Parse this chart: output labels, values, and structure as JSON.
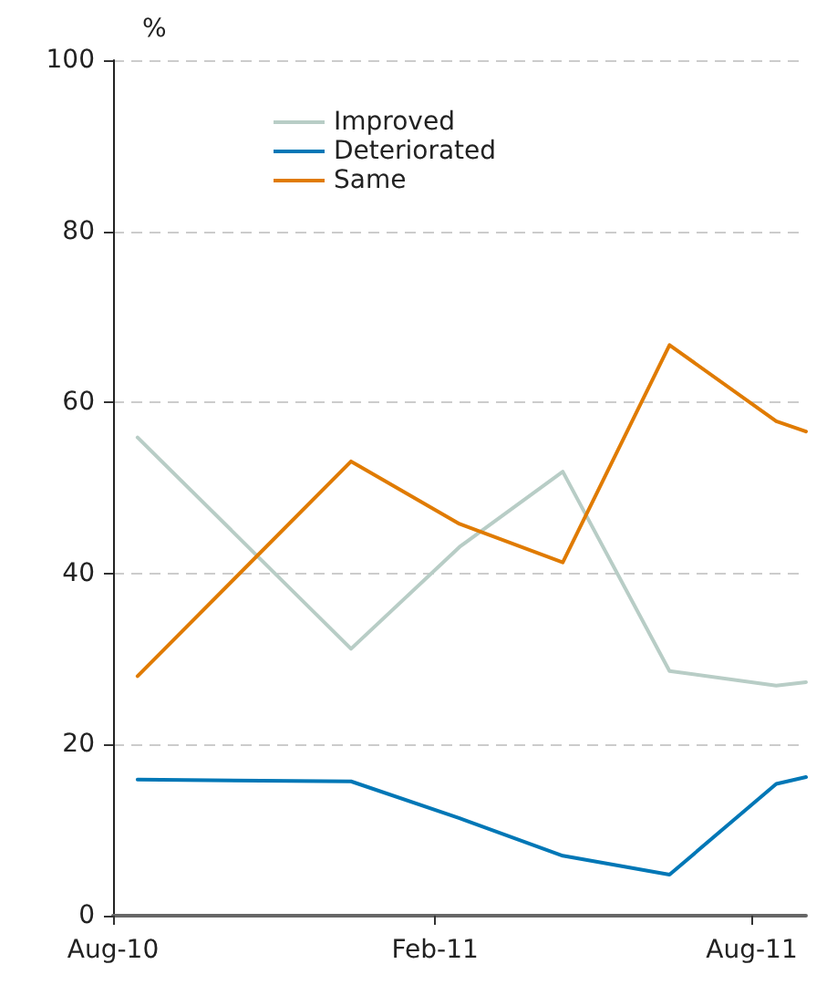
{
  "chart_data": {
    "type": "line",
    "ylabel": "%",
    "x": [
      "2010-08-15",
      "2010-12-15",
      "2011-02-15",
      "2011-04-15",
      "2011-06-15",
      "2011-08-15",
      "2011-09-01"
    ],
    "series": [
      {
        "name": "Improved",
        "color": "#b8cdc6",
        "values": [
          55.9,
          31.2,
          43.1,
          51.9,
          28.6,
          26.9,
          27.3
        ]
      },
      {
        "name": "Deteriorated",
        "color": "#0077b6",
        "values": [
          15.9,
          15.7,
          11.4,
          7.0,
          4.8,
          15.4,
          16.2
        ]
      },
      {
        "name": "Same",
        "color": "#e07b00",
        "values": [
          28.0,
          53.1,
          45.8,
          41.3,
          66.7,
          57.8,
          56.6
        ]
      }
    ],
    "xlim": [
      "2010-08-01",
      "2011-09-01"
    ],
    "xticks": [
      {
        "value": "2010-08-01",
        "label": "Aug-10"
      },
      {
        "value": "2011-02-01",
        "label": "Feb-11"
      },
      {
        "value": "2011-08-01",
        "label": "Aug-11"
      }
    ],
    "ylim": [
      0,
      100
    ],
    "yticks": [
      0,
      20,
      40,
      60,
      80,
      100
    ],
    "grid": "y",
    "legend": "top left",
    "marker": "none",
    "line_style": "solid"
  }
}
